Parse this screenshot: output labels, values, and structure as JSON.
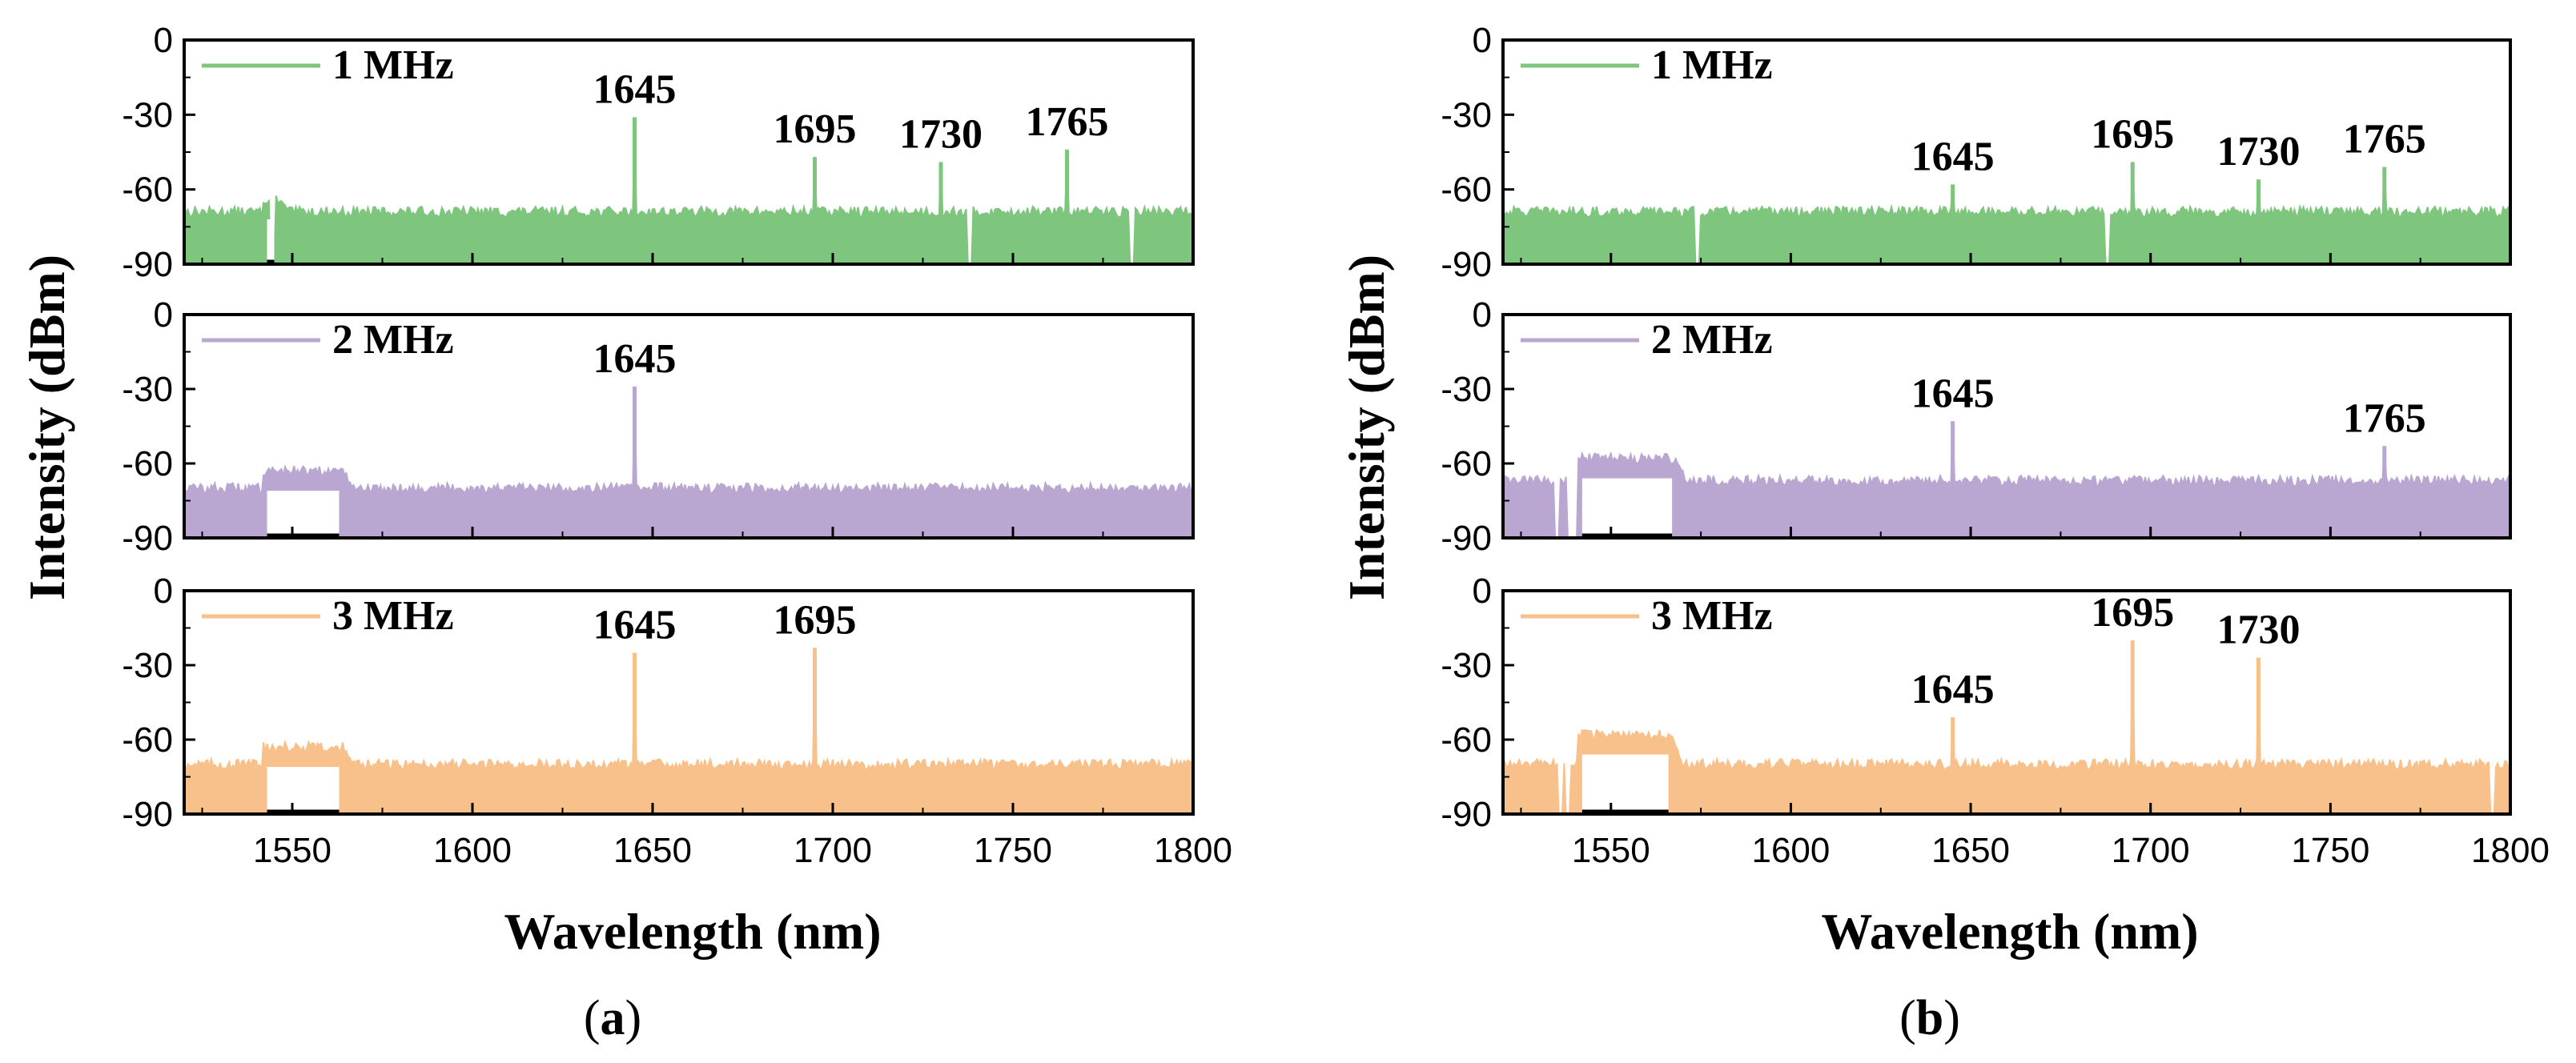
{
  "chart_data": [
    {
      "type": "line",
      "panel": "a",
      "caption": {
        "open": "(",
        "letter": "a",
        "close": ")"
      },
      "xlabel": "Wavelength (nm)",
      "ylabel": "Intensity (dBm)",
      "xlim": [
        1520,
        1800
      ],
      "xticks": [
        1550,
        1600,
        1650,
        1700,
        1750,
        1800
      ],
      "ylim": [
        -90,
        0
      ],
      "yticks": [
        0,
        -30,
        -60,
        -90
      ],
      "subplots": [
        {
          "legend": "1 MHz",
          "color": "#7ec67e",
          "floor": -69,
          "plateau": {
            "start": 1542,
            "end": 1546,
            "level": -64
          },
          "dips": [
            1544.5,
            1738,
            1783
          ],
          "peaks": [
            {
              "x": 1645,
              "y": -31,
              "label": "1645"
            },
            {
              "x": 1695,
              "y": -47,
              "label": "1695"
            },
            {
              "x": 1730,
              "y": -49,
              "label": "1730"
            },
            {
              "x": 1765,
              "y": -44,
              "label": "1765"
            }
          ]
        },
        {
          "legend": "2 MHz",
          "color": "#b9a6d1",
          "floor": -70,
          "plateau": {
            "start": 1542,
            "end": 1564,
            "level": -63
          },
          "dips": [],
          "peaks": [
            {
              "x": 1645,
              "y": -29,
              "label": "1645"
            }
          ]
        },
        {
          "legend": "3 MHz",
          "color": "#f8c18b",
          "floor": -70,
          "plateau": {
            "start": 1542,
            "end": 1564,
            "level": -63
          },
          "dips": [],
          "peaks": [
            {
              "x": 1645,
              "y": -25,
              "label": "1645"
            },
            {
              "x": 1695,
              "y": -23,
              "label": "1695"
            }
          ]
        }
      ]
    },
    {
      "type": "line",
      "panel": "b",
      "caption": {
        "open": "(",
        "letter": "b",
        "close": ")"
      },
      "xlabel": "Wavelength (nm)",
      "ylabel": "Intensity (dBm)",
      "xlim": [
        1520,
        1800
      ],
      "xticks": [
        1550,
        1600,
        1650,
        1700,
        1750,
        1800
      ],
      "ylim": [
        -90,
        0
      ],
      "yticks": [
        0,
        -30,
        -60,
        -90
      ],
      "subplots": [
        {
          "legend": "1 MHz",
          "color": "#7ec67e",
          "floor": -69,
          "plateau": null,
          "dips": [
            1574,
            1688
          ],
          "peaks": [
            {
              "x": 1645,
              "y": -58,
              "label": "1645"
            },
            {
              "x": 1695,
              "y": -49,
              "label": "1695"
            },
            {
              "x": 1730,
              "y": -56,
              "label": "1730"
            },
            {
              "x": 1765,
              "y": -51,
              "label": "1765"
            }
          ]
        },
        {
          "legend": "2 MHz",
          "color": "#b9a6d1",
          "floor": -67,
          "plateau": {
            "start": 1541,
            "end": 1568,
            "level": -58
          },
          "dips": [
            1535,
            1538.5,
            1540
          ],
          "peaks": [
            {
              "x": 1645,
              "y": -43,
              "label": "1645"
            },
            {
              "x": 1765,
              "y": -53,
              "label": "1765"
            }
          ]
        },
        {
          "legend": "3 MHz",
          "color": "#f8c18b",
          "floor": -70,
          "plateau": {
            "start": 1541,
            "end": 1567,
            "level": -58
          },
          "dips": [
            1536,
            1538,
            1795
          ],
          "peaks": [
            {
              "x": 1645,
              "y": -51,
              "label": "1645"
            },
            {
              "x": 1695,
              "y": -20,
              "label": "1695"
            },
            {
              "x": 1730,
              "y": -27,
              "label": "1730"
            }
          ]
        }
      ]
    }
  ]
}
